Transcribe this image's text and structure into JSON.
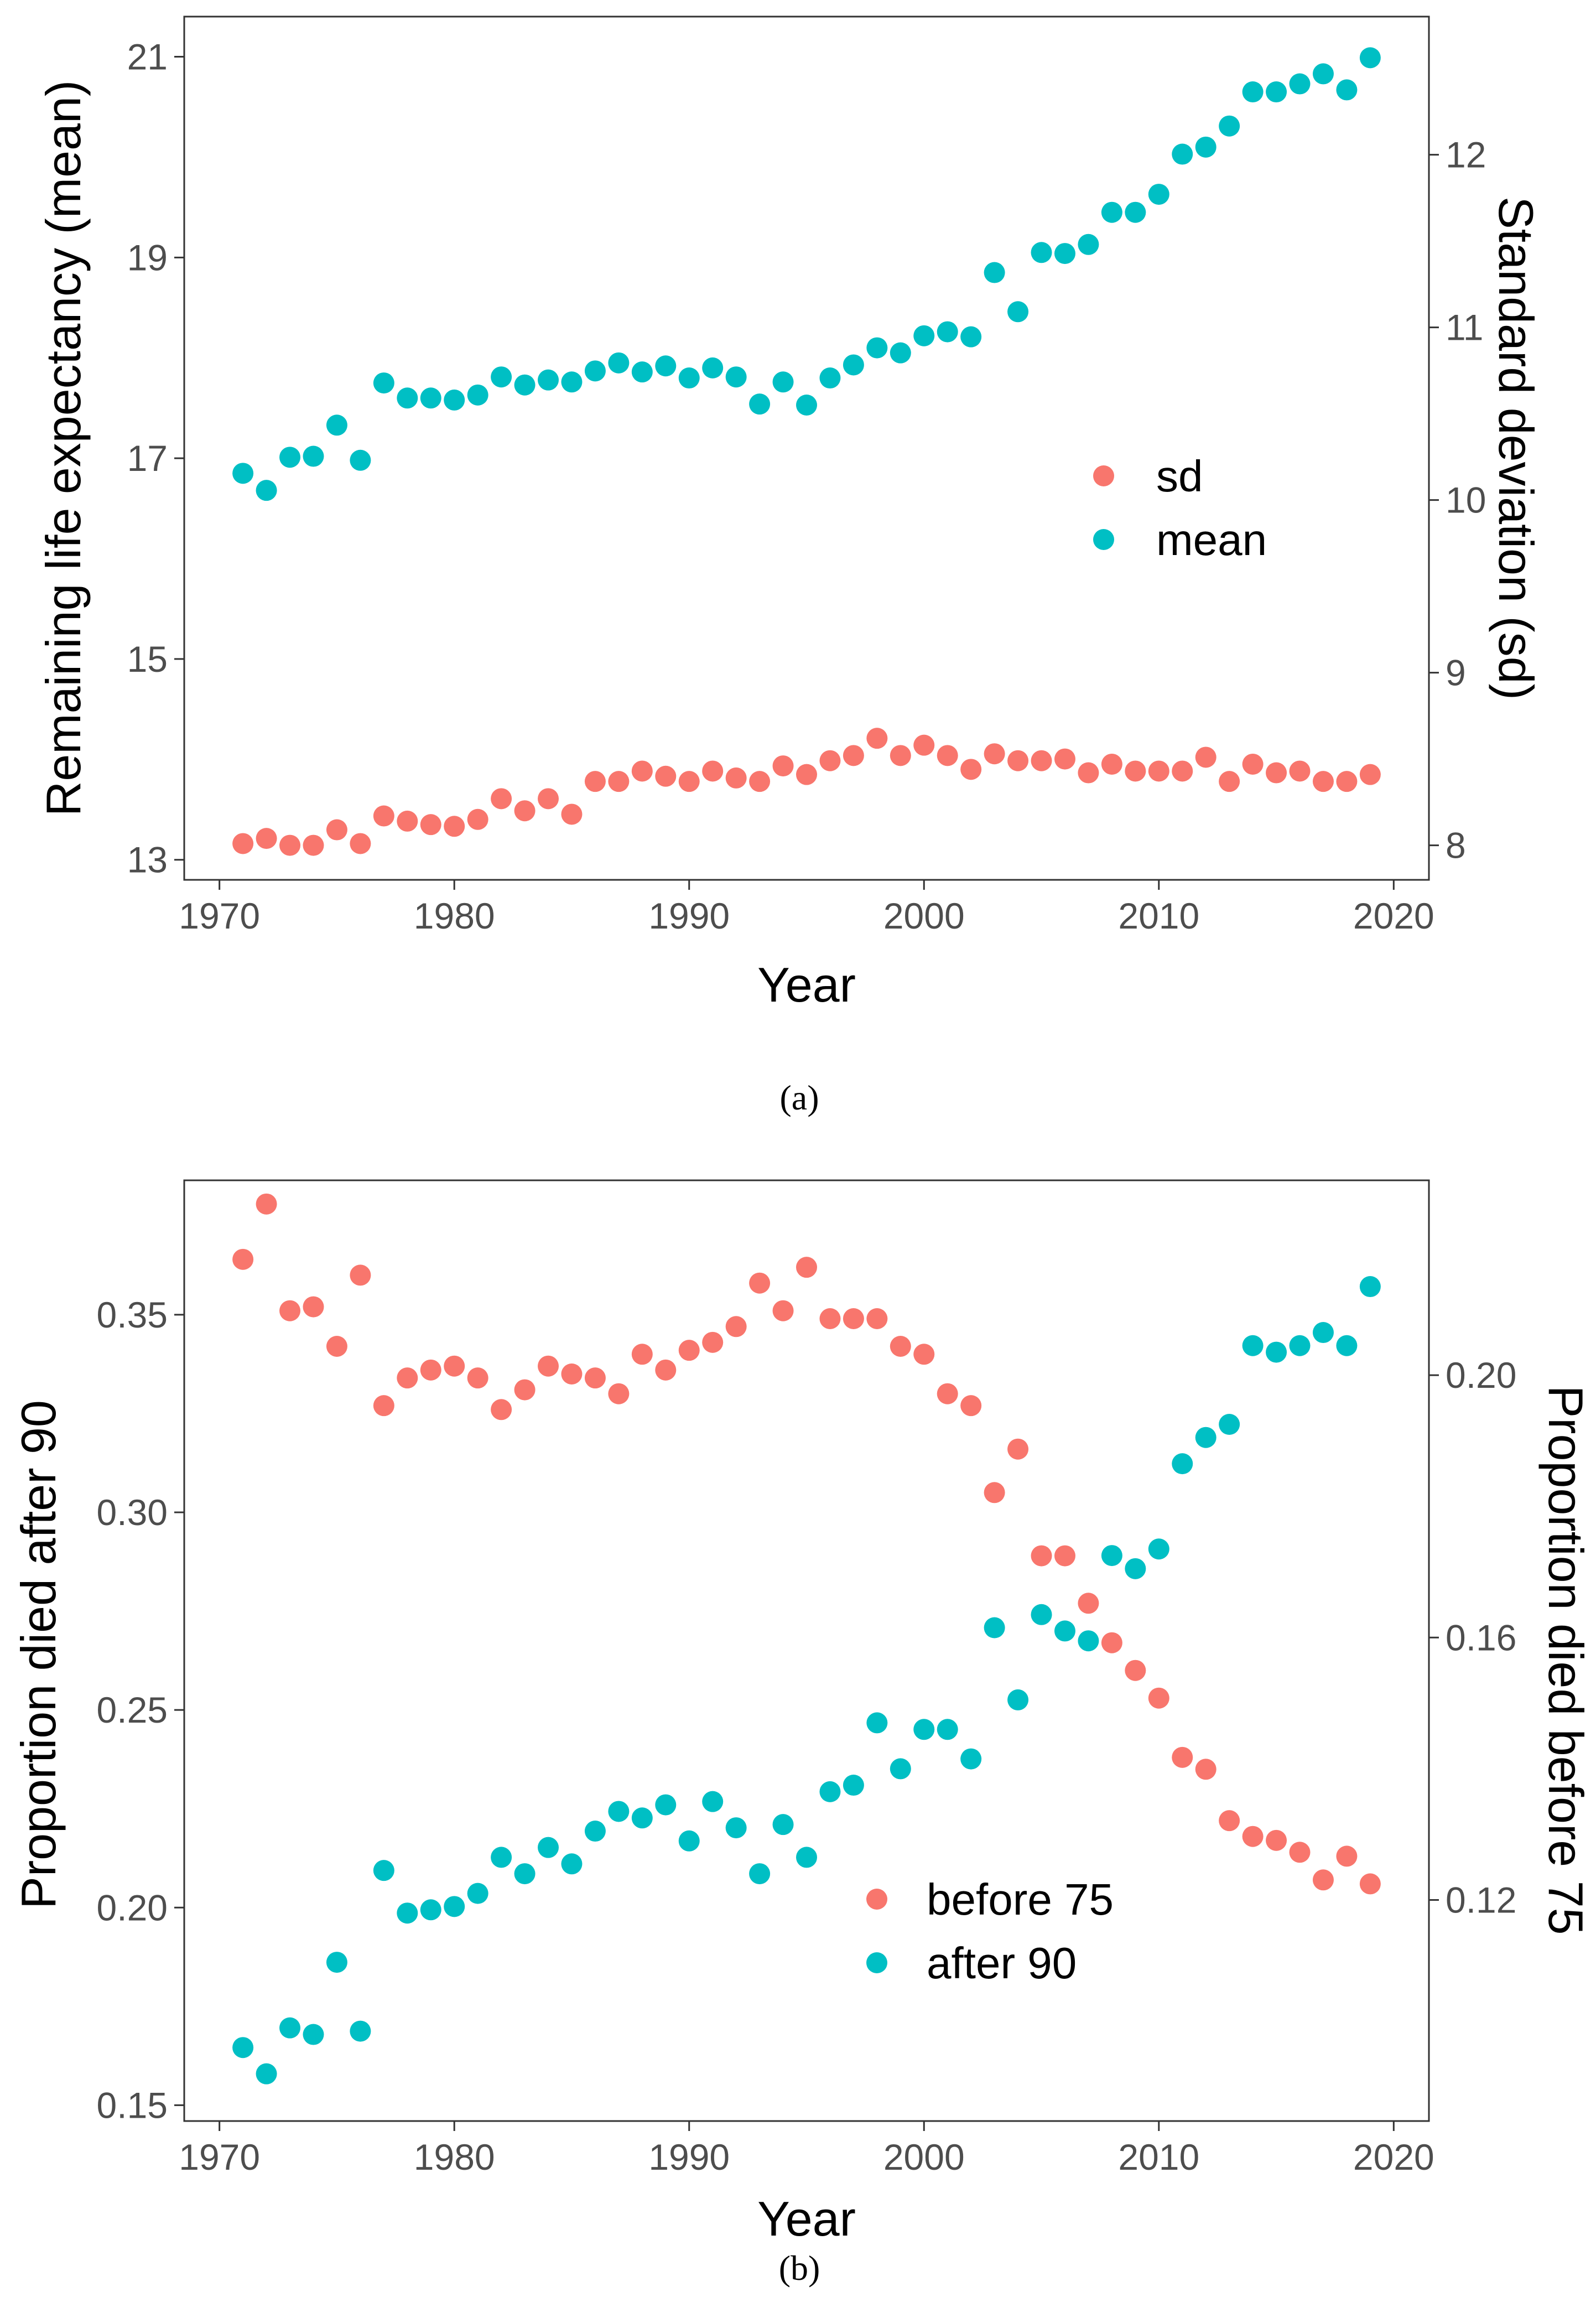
{
  "colors": {
    "sd": "#F8766D",
    "mean": "#00BFC4",
    "before75": "#F8766D",
    "after90": "#00BFC4",
    "axis": "#333333",
    "tick_text": "#4D4D4D"
  },
  "captions": {
    "a": "(a)",
    "b": "(b)"
  },
  "chart_data": [
    {
      "type": "scatter",
      "panel": "a",
      "xlabel": "Year",
      "ylabel_left": "Remaining life expectancy (mean)",
      "ylabel_right": "Standard deviation (sd)",
      "xlim": [
        1968.5,
        2021.5
      ],
      "ylim_left": [
        12.8,
        21.4
      ],
      "ylim_right": [
        7.8,
        12.8
      ],
      "x_ticks": [
        1970,
        1980,
        1990,
        2000,
        2010,
        2020
      ],
      "x_tick_labels": [
        "1970",
        "1980",
        "1990",
        "2000",
        "2010",
        "2020"
      ],
      "y_left_ticks": [
        13,
        15,
        17,
        19,
        21
      ],
      "y_left_tick_labels": [
        "13",
        "15",
        "17",
        "19",
        "21"
      ],
      "y_right_ticks": [
        8,
        9,
        10,
        11,
        12
      ],
      "y_right_tick_labels": [
        "8",
        "9",
        "10",
        "11",
        "12"
      ],
      "legend_position": "center-right",
      "legend": [
        "sd",
        "mean"
      ],
      "x": [
        1971,
        1972,
        1973,
        1974,
        1975,
        1976,
        1977,
        1978,
        1979,
        1980,
        1981,
        1982,
        1983,
        1984,
        1985,
        1986,
        1987,
        1988,
        1989,
        1990,
        1991,
        1992,
        1993,
        1994,
        1995,
        1996,
        1997,
        1998,
        1999,
        2000,
        2001,
        2002,
        2003,
        2004,
        2005,
        2006,
        2007,
        2008,
        2009,
        2010,
        2011,
        2012,
        2013,
        2014,
        2015,
        2016,
        2017,
        2018,
        2019
      ],
      "series": [
        {
          "name": "sd",
          "axis": "right",
          "values": [
            8.01,
            8.04,
            8.0,
            8.0,
            8.09,
            8.01,
            8.17,
            8.14,
            8.12,
            8.11,
            8.15,
            8.27,
            8.2,
            8.27,
            8.18,
            8.37,
            8.37,
            8.43,
            8.4,
            8.37,
            8.43,
            8.39,
            8.37,
            8.46,
            8.41,
            8.49,
            8.52,
            8.62,
            8.52,
            8.58,
            8.52,
            8.44,
            8.53,
            8.49,
            8.49,
            8.5,
            8.42,
            8.47,
            8.43,
            8.43,
            8.43,
            8.51,
            8.37,
            8.47,
            8.42,
            8.43,
            8.37,
            8.37,
            8.41
          ]
        },
        {
          "name": "mean",
          "axis": "left",
          "values": [
            16.85,
            16.68,
            17.01,
            17.02,
            17.33,
            16.98,
            17.75,
            17.6,
            17.6,
            17.58,
            17.63,
            17.81,
            17.73,
            17.78,
            17.76,
            17.87,
            17.95,
            17.86,
            17.92,
            17.8,
            17.9,
            17.81,
            17.54,
            17.76,
            17.53,
            17.8,
            17.93,
            18.1,
            18.05,
            18.22,
            18.26,
            18.21,
            18.85,
            18.46,
            19.05,
            19.04,
            19.13,
            19.45,
            19.45,
            19.63,
            20.03,
            20.1,
            20.31,
            20.65,
            20.65,
            20.73,
            20.83,
            20.67,
            20.99
          ]
        }
      ]
    },
    {
      "type": "scatter",
      "panel": "b",
      "xlabel": "Year",
      "ylabel_left": "Proportion died after 90",
      "ylabel_right": "Proportion died before 75",
      "xlim": [
        1968.5,
        2021.5
      ],
      "ylim_left": [
        0.146,
        0.384
      ],
      "ylim_right": [
        0.0863,
        0.2297
      ],
      "x_ticks": [
        1970,
        1980,
        1990,
        2000,
        2010,
        2020
      ],
      "x_tick_labels": [
        "1970",
        "1980",
        "1990",
        "2000",
        "2010",
        "2020"
      ],
      "y_left_ticks": [
        0.15,
        0.2,
        0.25,
        0.3,
        0.35
      ],
      "y_left_tick_labels": [
        "0.15",
        "0.20",
        "0.25",
        "0.30",
        "0.35"
      ],
      "y_right_ticks": [
        0.12,
        0.16,
        0.2
      ],
      "y_right_tick_labels": [
        "0.12",
        "0.16",
        "0.20"
      ],
      "legend_position": "bottom-center",
      "legend": [
        "before 75",
        "after 90"
      ],
      "x": [
        1971,
        1972,
        1973,
        1974,
        1975,
        1976,
        1977,
        1978,
        1979,
        1980,
        1981,
        1982,
        1983,
        1984,
        1985,
        1986,
        1987,
        1988,
        1989,
        1990,
        1991,
        1992,
        1993,
        1994,
        1995,
        1996,
        1997,
        1998,
        1999,
        2000,
        2001,
        2002,
        2003,
        2004,
        2005,
        2006,
        2007,
        2008,
        2009,
        2010,
        2011,
        2012,
        2013,
        2014,
        2015,
        2016,
        2017,
        2018,
        2019
      ],
      "series": [
        {
          "name": "before 75",
          "axis": "left",
          "values": [
            0.364,
            0.378,
            0.351,
            0.352,
            0.342,
            0.36,
            0.327,
            0.334,
            0.336,
            0.337,
            0.334,
            0.326,
            0.331,
            0.337,
            0.335,
            0.334,
            0.33,
            0.34,
            0.336,
            0.341,
            0.343,
            0.347,
            0.358,
            0.351,
            0.362,
            0.349,
            0.349,
            0.349,
            0.342,
            0.34,
            0.33,
            0.327,
            0.305,
            0.316,
            0.289,
            0.289,
            0.277,
            0.267,
            0.26,
            0.253,
            0.238,
            0.235,
            0.222,
            0.218,
            0.217,
            0.214,
            0.207,
            0.213,
            0.206
          ]
        },
        {
          "name": "after 90",
          "axis": "right",
          "values": [
            0.0975,
            0.0935,
            0.1005,
            0.0995,
            0.1105,
            0.1,
            0.1245,
            0.118,
            0.1185,
            0.119,
            0.121,
            0.1265,
            0.124,
            0.128,
            0.1255,
            0.1305,
            0.1335,
            0.1325,
            0.1345,
            0.129,
            0.135,
            0.131,
            0.124,
            0.1315,
            0.1265,
            0.1365,
            0.1375,
            0.147,
            0.14,
            0.146,
            0.146,
            0.1415,
            0.1615,
            0.1505,
            0.1635,
            0.161,
            0.1595,
            0.1725,
            0.1705,
            0.1735,
            0.1865,
            0.1905,
            0.1925,
            0.2045,
            0.2035,
            0.2045,
            0.2065,
            0.2045,
            0.2135
          ]
        }
      ]
    }
  ]
}
